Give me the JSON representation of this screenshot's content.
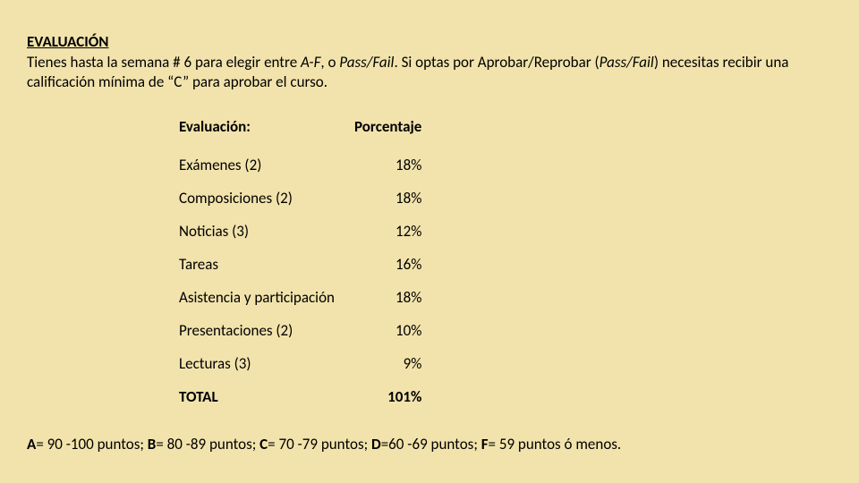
{
  "colors": {
    "background": "#f2e3ac",
    "text": "#000000"
  },
  "typography": {
    "font_family": "Calibri, 'Segoe UI', Arial, sans-serif",
    "base_size_pt": 13,
    "heading_weight": "bold"
  },
  "heading": "EVALUACIÓN",
  "intro": {
    "prefix": "Tienes hasta la semana # 6 para elegir entre ",
    "opt1_italic": "A-F",
    "sep": ", o ",
    "opt2_italic": "Pass/Fail",
    "after_options": ". Si optas por Aprobar/Reprobar (",
    "passfail_italic": "Pass/Fail",
    "tail": ") necesitas recibir una calificación mínima de “C” para aprobar el curso."
  },
  "table": {
    "header_eval": "Evaluación:",
    "header_pct": "Porcentaje",
    "rows": [
      {
        "label": "Exámenes (2)",
        "pct": "18%"
      },
      {
        "label": "Composiciones (2)",
        "pct": "18%"
      },
      {
        "label": "Noticias (3)",
        "pct": "12%"
      },
      {
        "label": "Tareas",
        "pct": "16%"
      },
      {
        "label": "Asistencia y participación",
        "pct": "18%"
      },
      {
        "label": "Presentaciones (2)",
        "pct": "10%"
      },
      {
        "label": "Lecturas (3)",
        "pct": "9%"
      }
    ],
    "total_label": "TOTAL",
    "total_pct": "101%"
  },
  "grading": {
    "A_label": "A",
    "A_text": "= 90 -100 puntos; ",
    "B_label": "B",
    "B_text": "= 80 -89 puntos; ",
    "C_label": "C",
    "C_text": "= 70 -79 puntos; ",
    "D_label": "D",
    "D_text": "=60 -69 puntos; ",
    "F_label": "F",
    "F_text": "= 59 puntos ó menos."
  }
}
